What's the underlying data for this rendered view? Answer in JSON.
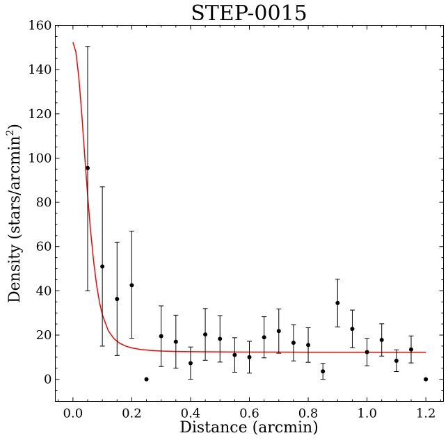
{
  "chart_data": {
    "type": "scatter",
    "title": "STEP-0015",
    "xlabel": "Distance (arcmin)",
    "ylabel_main": "Density (stars/arcmin",
    "ylabel_sup": "2",
    "ylabel_close": ")",
    "xlim": [
      -0.06,
      1.26
    ],
    "ylim": [
      -10,
      160
    ],
    "xticks": [
      0.0,
      0.2,
      0.4,
      0.6,
      0.8,
      1.0,
      1.2
    ],
    "xtick_labels": [
      "0.0",
      "0.2",
      "0.4",
      "0.6",
      "0.8",
      "1.0",
      "1.2"
    ],
    "yticks": [
      0,
      20,
      40,
      60,
      80,
      100,
      120,
      140,
      160
    ],
    "ytick_labels": [
      "0",
      "20",
      "40",
      "60",
      "80",
      "100",
      "120",
      "140",
      "160"
    ],
    "grid": false,
    "legend": "none",
    "colors": {
      "points": "#000000",
      "fit": "#ff0000"
    },
    "points": [
      {
        "x": 0.05,
        "y": 95.5,
        "err_lo": 55.5,
        "err_hi": 55.0
      },
      {
        "x": 0.1,
        "y": 51.0,
        "err_lo": 36.0,
        "err_hi": 36.0
      },
      {
        "x": 0.15,
        "y": 36.3,
        "err_lo": 25.5,
        "err_hi": 25.7
      },
      {
        "x": 0.2,
        "y": 42.5,
        "err_lo": 24.0,
        "err_hi": 24.5
      },
      {
        "x": 0.25,
        "y": 0.0,
        "err_lo": 0,
        "err_hi": 0
      },
      {
        "x": 0.3,
        "y": 19.5,
        "err_lo": 13.7,
        "err_hi": 13.7
      },
      {
        "x": 0.35,
        "y": 17.0,
        "err_lo": 12.0,
        "err_hi": 12.0
      },
      {
        "x": 0.4,
        "y": 7.3,
        "err_lo": 7.3,
        "err_hi": 7.3
      },
      {
        "x": 0.45,
        "y": 20.3,
        "err_lo": 11.7,
        "err_hi": 11.7
      },
      {
        "x": 0.5,
        "y": 18.3,
        "err_lo": 10.5,
        "err_hi": 10.5
      },
      {
        "x": 0.55,
        "y": 11.0,
        "err_lo": 7.8,
        "err_hi": 7.8
      },
      {
        "x": 0.6,
        "y": 10.0,
        "err_lo": 7.2,
        "err_hi": 7.2
      },
      {
        "x": 0.65,
        "y": 19.0,
        "err_lo": 9.3,
        "err_hi": 9.3
      },
      {
        "x": 0.7,
        "y": 21.8,
        "err_lo": 10.0,
        "err_hi": 10.0
      },
      {
        "x": 0.75,
        "y": 16.5,
        "err_lo": 8.2,
        "err_hi": 8.2
      },
      {
        "x": 0.8,
        "y": 15.5,
        "err_lo": 7.8,
        "err_hi": 7.8
      },
      {
        "x": 0.85,
        "y": 3.6,
        "err_lo": 3.6,
        "err_hi": 3.6
      },
      {
        "x": 0.9,
        "y": 34.5,
        "err_lo": 10.8,
        "err_hi": 10.8
      },
      {
        "x": 0.95,
        "y": 22.8,
        "err_lo": 8.5,
        "err_hi": 8.5
      },
      {
        "x": 1.0,
        "y": 12.3,
        "err_lo": 6.2,
        "err_hi": 6.2
      },
      {
        "x": 1.05,
        "y": 17.8,
        "err_lo": 7.3,
        "err_hi": 7.3
      },
      {
        "x": 1.1,
        "y": 8.4,
        "err_lo": 4.9,
        "err_hi": 4.9
      },
      {
        "x": 1.15,
        "y": 13.5,
        "err_lo": 6.1,
        "err_hi": 6.1
      },
      {
        "x": 1.2,
        "y": 0.0,
        "err_lo": 0,
        "err_hi": 0
      }
    ],
    "fit": {
      "x": [
        0.0,
        0.01,
        0.02,
        0.03,
        0.04,
        0.05,
        0.06,
        0.07,
        0.08,
        0.09,
        0.1,
        0.12,
        0.14,
        0.16,
        0.18,
        0.2,
        0.23,
        0.26,
        0.3,
        0.35,
        0.4,
        0.5,
        0.6,
        0.7,
        0.8,
        0.9,
        1.0,
        1.1,
        1.2
      ],
      "y": [
        152.4,
        148.0,
        136.5,
        120.0,
        101.0,
        83.0,
        67.0,
        53.8,
        43.0,
        35.0,
        29.2,
        22.0,
        18.3,
        16.2,
        15.0,
        14.2,
        13.5,
        13.1,
        12.8,
        12.6,
        12.5,
        12.4,
        12.3,
        12.3,
        12.25,
        12.2,
        12.2,
        12.2,
        12.2
      ]
    }
  }
}
